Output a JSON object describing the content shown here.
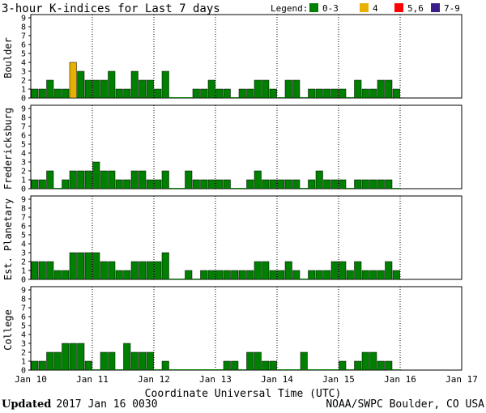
{
  "chart_data": {
    "type": "bar",
    "title": "3-hour K-indices for Last 7 days",
    "legend": {
      "label": "Legend:",
      "items": [
        {
          "label": "0-3",
          "color": "#008000"
        },
        {
          "label": "4",
          "color": "#e8b000"
        },
        {
          "label": "5,6",
          "color": "#ff0000"
        },
        {
          "label": "7-9",
          "color": "#3a1f8c"
        }
      ]
    },
    "ylim": [
      0,
      9
    ],
    "yticks": [
      "0",
      "1",
      "2",
      "3",
      "4",
      "5",
      "6",
      "7",
      "8",
      "9"
    ],
    "xlabel": "Coordinate Universal Time (UTC)",
    "x_ticks": [
      "Jan 10",
      "Jan 11",
      "Jan 12",
      "Jan 13",
      "Jan 14",
      "Jan 15",
      "Jan 16",
      "Jan 17"
    ],
    "slots_per_day": 8,
    "panels": [
      {
        "name": "Boulder",
        "values": [
          1,
          1,
          2,
          1,
          1,
          4,
          3,
          2,
          2,
          2,
          3,
          1,
          1,
          3,
          2,
          2,
          1,
          3,
          0,
          0,
          0,
          1,
          1,
          2,
          1,
          1,
          0,
          1,
          1,
          2,
          2,
          1,
          0,
          2,
          2,
          0,
          1,
          1,
          1,
          1,
          1,
          0,
          2,
          1,
          1,
          2,
          2,
          1
        ]
      },
      {
        "name": "Fredericksburg",
        "values": [
          1,
          1,
          2,
          0,
          1,
          2,
          2,
          2,
          3,
          2,
          2,
          1,
          1,
          2,
          2,
          1,
          1,
          2,
          0,
          0,
          2,
          1,
          1,
          1,
          1,
          1,
          0,
          0,
          1,
          2,
          1,
          1,
          1,
          1,
          1,
          0,
          1,
          2,
          1,
          1,
          1,
          0,
          1,
          1,
          1,
          1,
          1,
          0
        ]
      },
      {
        "name": "Est. Planetary",
        "values": [
          2,
          2,
          2,
          1,
          1,
          3,
          3,
          3,
          3,
          2,
          2,
          1,
          1,
          2,
          2,
          2,
          2,
          3,
          0,
          0,
          1,
          0,
          1,
          1,
          1,
          1,
          1,
          1,
          1,
          2,
          2,
          1,
          1,
          2,
          1,
          0,
          1,
          1,
          1,
          2,
          2,
          1,
          2,
          1,
          1,
          1,
          2,
          1
        ]
      },
      {
        "name": "College",
        "values": [
          1,
          1,
          2,
          2,
          3,
          3,
          3,
          1,
          0,
          2,
          2,
          0,
          3,
          2,
          2,
          2,
          0,
          1,
          0,
          0,
          0,
          0,
          0,
          0,
          0,
          1,
          1,
          0,
          2,
          2,
          1,
          1,
          0,
          0,
          0,
          2,
          0,
          0,
          0,
          0,
          1,
          0,
          1,
          2,
          2,
          1,
          1,
          0
        ]
      }
    ]
  },
  "footer": {
    "updated_label": "Updated",
    "updated_value": "2017 Jan 16 0030",
    "credit": "NOAA/SWPC Boulder, CO USA"
  }
}
